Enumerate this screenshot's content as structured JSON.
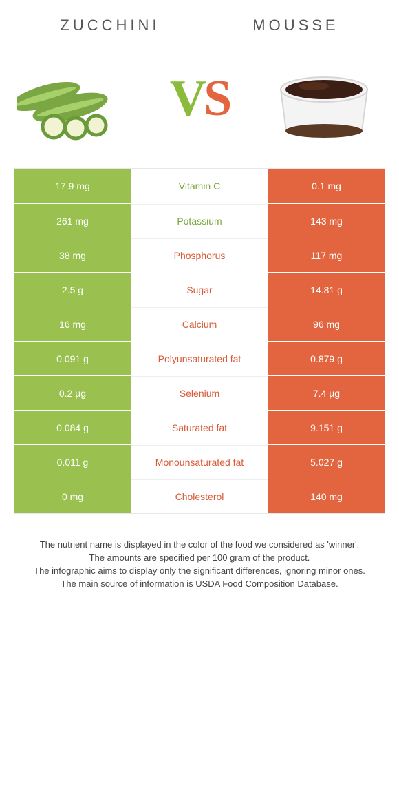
{
  "header": {
    "left_title": "Zucchini",
    "right_title": "Mousse",
    "vs_v": "V",
    "vs_s": "S"
  },
  "colors": {
    "zucchini": "#9ac150",
    "mousse": "#e2653f",
    "winner_green_text": "#79a63b",
    "winner_orange_text": "#d95a37"
  },
  "table": {
    "rows": [
      {
        "left": "17.9 mg",
        "label": "Vitamin C",
        "right": "0.1 mg",
        "winner": "left"
      },
      {
        "left": "261 mg",
        "label": "Potassium",
        "right": "143 mg",
        "winner": "left"
      },
      {
        "left": "38 mg",
        "label": "Phosphorus",
        "right": "117 mg",
        "winner": "right"
      },
      {
        "left": "2.5 g",
        "label": "Sugar",
        "right": "14.81 g",
        "winner": "right"
      },
      {
        "left": "16 mg",
        "label": "Calcium",
        "right": "96 mg",
        "winner": "right"
      },
      {
        "left": "0.091 g",
        "label": "Polyunsaturated fat",
        "right": "0.879 g",
        "winner": "right"
      },
      {
        "left": "0.2 µg",
        "label": "Selenium",
        "right": "7.4 µg",
        "winner": "right"
      },
      {
        "left": "0.084 g",
        "label": "Saturated fat",
        "right": "9.151 g",
        "winner": "right"
      },
      {
        "left": "0.011 g",
        "label": "Monounsaturated fat",
        "right": "5.027 g",
        "winner": "right"
      },
      {
        "left": "0 mg",
        "label": "Cholesterol",
        "right": "140 mg",
        "winner": "right"
      }
    ]
  },
  "footer": {
    "line1": "The nutrient name is displayed in the color of the food we considered as 'winner'.",
    "line2": "The amounts are specified per 100 gram of the product.",
    "line3": "The infographic aims to display only the significant differences, ignoring minor ones.",
    "line4": "The main source of information is USDA Food Composition Database."
  }
}
